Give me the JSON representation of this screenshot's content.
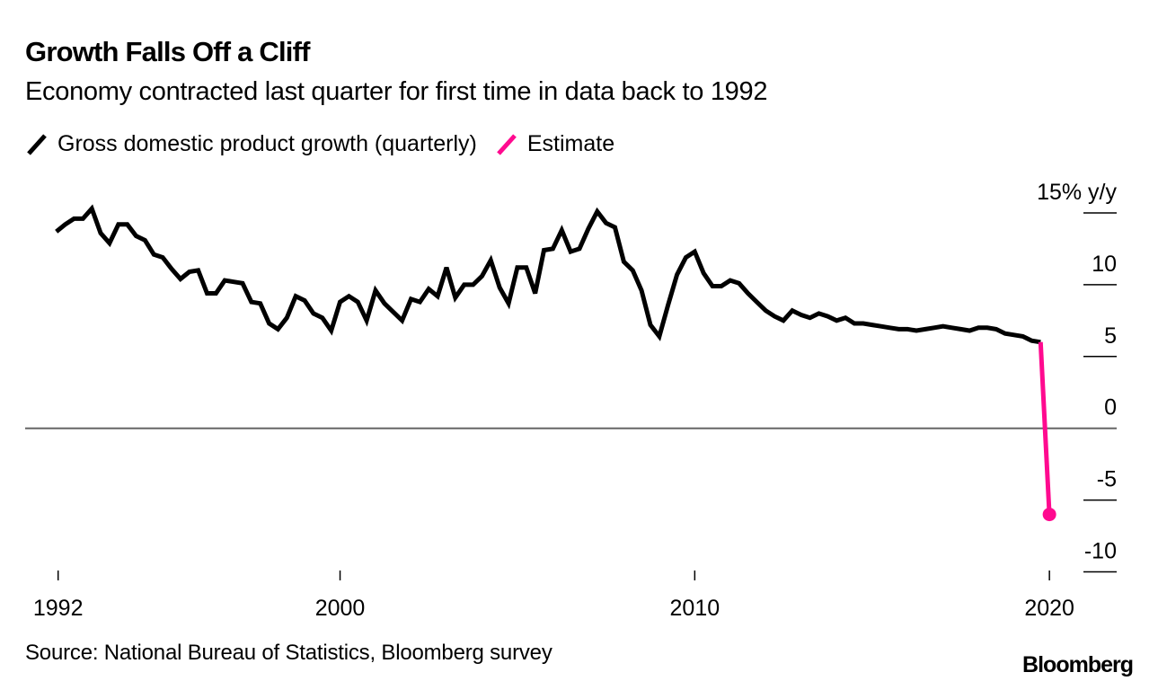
{
  "chart_data": {
    "type": "line",
    "title": "Growth Falls Off a Cliff",
    "subtitle": "Economy contracted last quarter for first time in data back to 1992",
    "xlabel": "",
    "ylabel": "% y/y",
    "ylim": [
      -10,
      15
    ],
    "y_ticks": [
      15,
      10,
      5,
      0,
      -5,
      -10
    ],
    "y_tick_labels": [
      "15% y/y",
      "10",
      "5",
      "0",
      "-5",
      "-10"
    ],
    "x_ticks": [
      1992,
      2000,
      2010,
      2020
    ],
    "x_tick_labels": [
      "1992",
      "2000",
      "2010",
      "2020"
    ],
    "x_start": "1992Q1",
    "x_period": "quarterly",
    "grid": false,
    "zero_line": true,
    "legend_position": "top-left",
    "legend": [
      {
        "name": "Gross domestic product growth (quarterly)",
        "color": "#000000"
      },
      {
        "name": "Estimate",
        "color": "#ff0a8f"
      }
    ],
    "series": [
      {
        "name": "Gross domestic product growth (quarterly)",
        "color": "#000000",
        "start_year": 1992.0,
        "step_years": 0.25,
        "values": [
          13.7,
          14.2,
          14.6,
          14.6,
          15.3,
          13.6,
          12.9,
          14.2,
          14.2,
          13.4,
          13.1,
          12.1,
          11.9,
          11.1,
          10.4,
          10.9,
          11.0,
          9.4,
          9.4,
          10.3,
          10.2,
          10.1,
          8.8,
          8.7,
          7.3,
          6.9,
          7.7,
          9.2,
          8.9,
          8.0,
          7.7,
          6.8,
          8.8,
          9.2,
          8.8,
          7.5,
          9.6,
          8.7,
          8.1,
          7.5,
          9.0,
          8.8,
          9.7,
          9.2,
          11.2,
          9.1,
          10.0,
          10.0,
          10.6,
          11.7,
          9.8,
          8.7,
          11.2,
          11.2,
          9.4,
          12.4,
          12.5,
          13.8,
          12.3,
          12.5,
          13.9,
          15.1,
          14.3,
          14.0,
          11.6,
          11.0,
          9.6,
          7.2,
          6.4,
          8.6,
          10.7,
          11.9,
          12.3,
          10.8,
          9.9,
          9.9,
          10.3,
          10.1,
          9.4,
          8.8,
          8.2,
          7.8,
          7.5,
          8.2,
          7.9,
          7.7,
          8.0,
          7.8,
          7.5,
          7.7,
          7.3,
          7.3,
          7.2,
          7.1,
          7.0,
          6.9,
          6.9,
          6.8,
          6.9,
          7.0,
          7.1,
          7.0,
          6.9,
          6.8,
          7.0,
          7.0,
          6.9,
          6.6,
          6.5,
          6.4,
          6.1,
          6.0
        ]
      },
      {
        "name": "Estimate",
        "color": "#ff0a8f",
        "x": [
          2019.75,
          2020.0
        ],
        "values": [
          6.0,
          -6.0
        ]
      }
    ]
  },
  "header": {
    "title": "Growth Falls Off a Cliff",
    "subtitle": "Economy contracted last quarter for first time in data back to 1992"
  },
  "legend": {
    "gdp_label": "Gross domestic product growth (quarterly)",
    "estimate_label": "Estimate"
  },
  "footer": {
    "source": "Source: National Bureau of Statistics, Bloomberg survey",
    "logo": "Bloomberg"
  }
}
